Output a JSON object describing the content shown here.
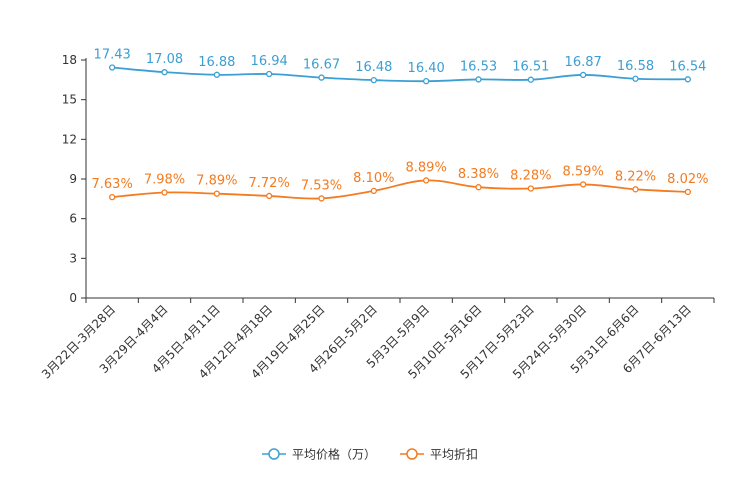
{
  "chart_data": {
    "type": "line",
    "categories": [
      "3月22日-3月28日",
      "3月29日-4月4日",
      "4月5日-4月11日",
      "4月12日-4月18日",
      "4月19日-4月25日",
      "4月26日-5月2日",
      "5月3日-5月9日",
      "5月10日-5月16日",
      "5月17日-5月23日",
      "5月24日-5月30日",
      "5月31日-6月6日",
      "6月7日-6月13日"
    ],
    "ylim": [
      0,
      18
    ],
    "yticks": [
      0,
      3,
      6,
      9,
      12,
      15,
      18
    ],
    "series": [
      {
        "name": "平均价格（万）",
        "color": "#3b9fd4",
        "values": [
          17.43,
          17.08,
          16.88,
          16.94,
          16.67,
          16.48,
          16.4,
          16.53,
          16.51,
          16.87,
          16.58,
          16.54
        ],
        "labels": [
          "17.43",
          "17.08",
          "16.88",
          "16.94",
          "16.67",
          "16.48",
          "16.40",
          "16.53",
          "16.51",
          "16.87",
          "16.58",
          "16.54"
        ]
      },
      {
        "name": "平均折扣",
        "color": "#f47b20",
        "values": [
          7.63,
          7.98,
          7.89,
          7.72,
          7.53,
          8.1,
          8.89,
          8.38,
          8.28,
          8.59,
          8.22,
          8.02
        ],
        "labels": [
          "7.63%",
          "7.98%",
          "7.89%",
          "7.72%",
          "7.53%",
          "8.10%",
          "8.89%",
          "8.38%",
          "8.28%",
          "8.59%",
          "8.22%",
          "8.02%"
        ]
      }
    ],
    "legend_position": "bottom-center",
    "grid": false
  }
}
